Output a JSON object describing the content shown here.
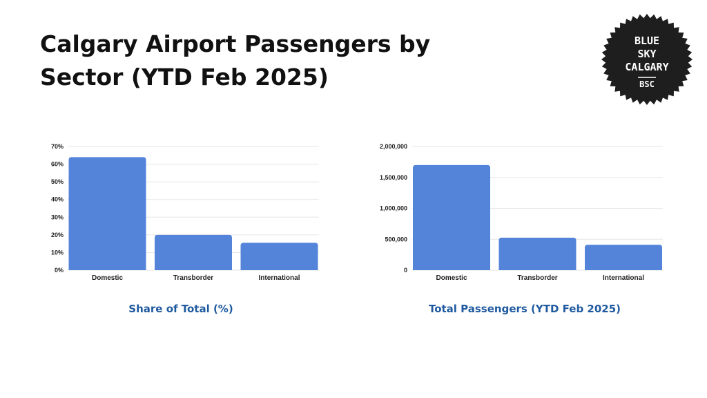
{
  "title": "Calgary Airport Passengers by Sector (YTD Feb 2025)",
  "badge": {
    "lines": [
      "BLUE",
      "SKY",
      "CALGARY"
    ],
    "abbr": "BSC",
    "color": "#1e1e1e"
  },
  "colors": {
    "bar": "#5484d9",
    "caption": "#1f5aa0",
    "grid": "#e6e6e6"
  },
  "chart_data": [
    {
      "type": "bar",
      "title": "Share of Total (%)",
      "categories": [
        "Domestic",
        "Transborder",
        "International"
      ],
      "values": [
        64,
        20,
        15.5
      ],
      "unit": "%",
      "ylim": [
        0,
        70
      ],
      "yticks": [
        0,
        10,
        20,
        30,
        40,
        50,
        60,
        70
      ],
      "ytick_labels": [
        "0%",
        "10%",
        "20%",
        "30%",
        "40%",
        "50%",
        "60%",
        "70%"
      ],
      "grid": true
    },
    {
      "type": "bar",
      "title": "Total Passengers (YTD Feb 2025)",
      "categories": [
        "Domestic",
        "Transborder",
        "International"
      ],
      "values": [
        1700000,
        525000,
        410000
      ],
      "ylim": [
        0,
        2000000
      ],
      "yticks": [
        0,
        500000,
        1000000,
        1500000,
        2000000
      ],
      "ytick_labels": [
        "0",
        "500,000",
        "1,000,000",
        "1,500,000",
        "2,000,000"
      ],
      "grid": true
    }
  ]
}
